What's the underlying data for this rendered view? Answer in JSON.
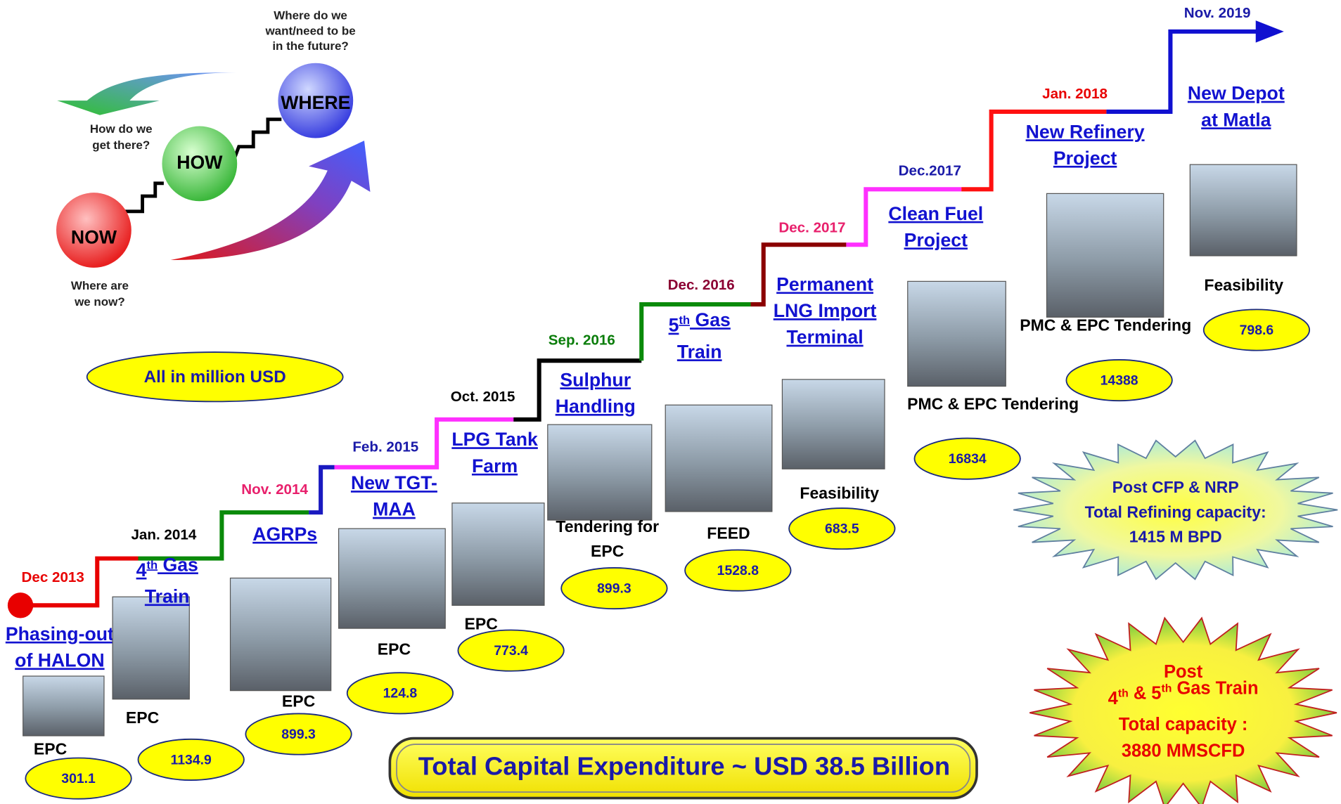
{
  "inset": {
    "future_question": [
      "Where do we",
      "want/need to be",
      "in the future?"
    ],
    "how_question": [
      "How do we",
      "get there?"
    ],
    "now_question": [
      "Where are",
      "we now?"
    ],
    "now": "NOW",
    "how": "HOW",
    "where": "WHERE"
  },
  "unit_note": "All in million USD",
  "milestones": [
    {
      "date": "Dec 2013",
      "color": "#e80000",
      "project": [
        "Phasing-out",
        "of HALON"
      ],
      "stage": [
        "EPC"
      ],
      "cost": "301.1"
    },
    {
      "date": "Jan. 2014",
      "color": "#000000",
      "project": [
        [
          "4",
          {
            "sup": "th"
          },
          " Gas"
        ],
        "Train"
      ],
      "stage": [
        "EPC"
      ],
      "cost": "1134.9"
    },
    {
      "date": "Nov. 2014",
      "color": "#e8206c",
      "project": [
        "AGRPs"
      ],
      "stage": [
        "EPC"
      ],
      "cost": "899.3"
    },
    {
      "date": "Feb. 2015",
      "color": "#1a1aa8",
      "project": [
        "New TGT-",
        "MAA"
      ],
      "stage": [
        "EPC"
      ],
      "cost": "124.8"
    },
    {
      "date": "Oct. 2015",
      "color": "#000000",
      "project": [
        "LPG Tank",
        "Farm"
      ],
      "stage": [
        "EPC"
      ],
      "cost": "773.4"
    },
    {
      "date": "Sep. 2016",
      "color": "#0a7d0a",
      "project": [
        "Sulphur",
        "Handling"
      ],
      "stage": [
        "Tendering for",
        "EPC"
      ],
      "cost": "899.3"
    },
    {
      "date": "Dec. 2016",
      "color": "#8b0033",
      "project": [
        [
          "5",
          {
            "sup": "th"
          },
          " Gas"
        ],
        "Train"
      ],
      "stage": [
        "FEED"
      ],
      "cost": "1528.8"
    },
    {
      "date": "Dec. 2017",
      "color": "#e8206c",
      "project": [
        "Permanent",
        "LNG Import",
        "Terminal"
      ],
      "stage": [
        "Feasibility"
      ],
      "cost": "683.5"
    },
    {
      "date": "Dec.2017",
      "color": "#1a1aa8",
      "project": [
        "Clean Fuel",
        "Project"
      ],
      "stage": [
        "PMC & EPC Tendering"
      ],
      "cost": "16834"
    },
    {
      "date": "Jan. 2018",
      "color": "#e80000",
      "project": [
        "New Refinery",
        "Project"
      ],
      "stage": [
        "PMC & EPC Tendering"
      ],
      "cost": "14388"
    },
    {
      "date": "Nov. 2019",
      "color": "#1a1aa8",
      "project": [
        "New Depot",
        "at Matla"
      ],
      "stage": [
        "Feasibility"
      ],
      "cost": "798.6"
    }
  ],
  "refining_note": [
    "Post CFP & NRP",
    "Total Refining capacity:",
    "1415 M BPD"
  ],
  "gas_note": [
    "Post",
    [
      "4",
      {
        "sup": "th"
      },
      " & 5",
      {
        "sup": "th"
      },
      " Gas Train"
    ],
    "Total capacity :",
    "3880 MMSCFD"
  ],
  "total": "Total Capital Expenditure ~ USD 38.5 Billion"
}
